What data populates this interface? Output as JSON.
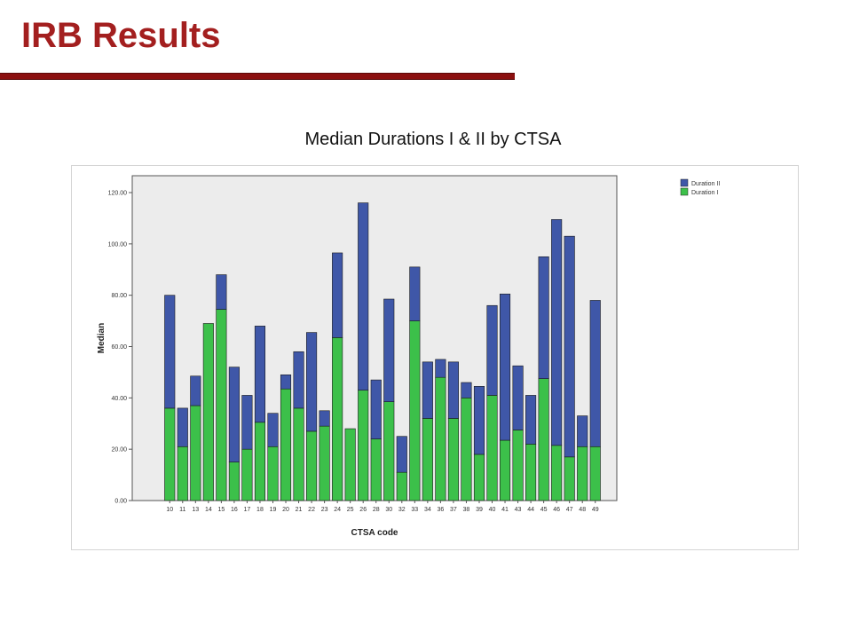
{
  "slide": {
    "title": "IRB Results",
    "caption": "Median Durations I & II by CTSA"
  },
  "colors": {
    "title": "#a31f1f",
    "rule": "#8b1010",
    "duration_i": "#3cc04a",
    "duration_ii": "#3f57a8",
    "plot_bg": "#ececec"
  },
  "chart_data": {
    "type": "bar",
    "stacked": true,
    "xlabel": "CTSA code",
    "ylabel": "Median",
    "ylim": [
      0,
      120
    ],
    "yticks": [
      "0.00",
      "20.00",
      "40.00",
      "60.00",
      "80.00",
      "100.00",
      "120.00"
    ],
    "yticks_values": [
      0,
      20,
      40,
      60,
      80,
      100,
      120
    ],
    "grid": false,
    "legend_position": "top-right",
    "categories": [
      "10",
      "11",
      "13",
      "14",
      "15",
      "16",
      "17",
      "18",
      "19",
      "20",
      "21",
      "22",
      "23",
      "24",
      "25",
      "26",
      "28",
      "30",
      "32",
      "33",
      "34",
      "36",
      "37",
      "38",
      "39",
      "40",
      "41",
      "43",
      "44",
      "45",
      "46",
      "47",
      "48",
      "49"
    ],
    "series": [
      {
        "name": "Duration I",
        "values": [
          36,
          21,
          37,
          69,
          74.5,
          15,
          20,
          30.5,
          21,
          43.5,
          36,
          27,
          29,
          63.5,
          28,
          43,
          24,
          38.5,
          11,
          70,
          32,
          48,
          32,
          40,
          18,
          41,
          23.5,
          27.5,
          22,
          47.5,
          21.5,
          17,
          21,
          21
        ]
      },
      {
        "name": "Duration II",
        "values": [
          44,
          15,
          11.5,
          0,
          13.5,
          37,
          21,
          37.5,
          13,
          5.5,
          22,
          38.5,
          6,
          33,
          0,
          73,
          23,
          40,
          14,
          21,
          22,
          7,
          22,
          6,
          26.5,
          35,
          57,
          25,
          19,
          47.5,
          88,
          86,
          12,
          57
        ]
      }
    ],
    "legend": [
      "Duration II",
      "Duration I"
    ]
  }
}
